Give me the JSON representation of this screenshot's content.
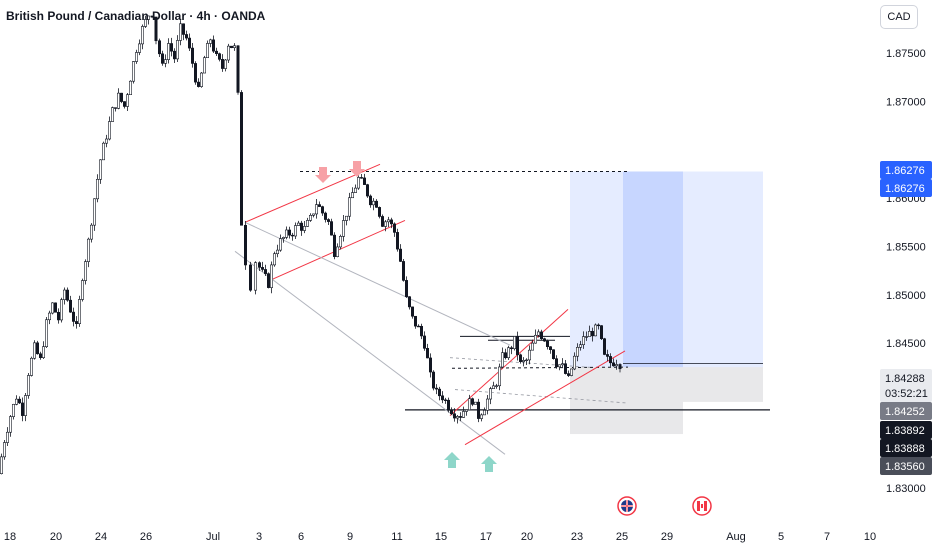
{
  "header": {
    "title": "British Pound / Canadian Dollar · 4h · OANDA",
    "currency": "CAD"
  },
  "colors": {
    "up": "#ffffff",
    "down": "#131722",
    "channel_red": "#f23645",
    "channel_gray": "#b2b5be",
    "target_blue": "#2962ff",
    "stop_gray": "#c8cbd2",
    "arrow_down": "#f7a1a6",
    "arrow_up": "#8ed6c9",
    "current_price_tag": "#e9ebef",
    "last_price_tag": "#131722"
  },
  "price_tags": {
    "target_a": "1.86276",
    "target_b": "1.86276",
    "current": "1.84288",
    "countdown": "03:52:21",
    "entry": "1.84252",
    "level_a": "1.83892",
    "level_b": "1.83888",
    "stop": "1.83560"
  },
  "chart_data": {
    "type": "candlestick",
    "title": "British Pound / Canadian Dollar · 4h · OANDA",
    "y_axis": {
      "unit": "CAD",
      "range": [
        1.8265,
        1.8805
      ],
      "ticks": [
        "1.87500",
        "1.87000",
        "1.86000",
        "1.85500",
        "1.85000",
        "1.84500",
        "1.83000"
      ]
    },
    "x_axis": {
      "ticks": [
        "18",
        "20",
        "24",
        "26",
        "Jul",
        "3",
        "6",
        "9",
        "11",
        "15",
        "17",
        "20",
        "23",
        "25",
        "29",
        "Aug",
        "5",
        "7",
        "10"
      ]
    },
    "path_points": [
      [
        0,
        1.8315
      ],
      [
        6,
        1.835
      ],
      [
        12,
        1.8375
      ],
      [
        18,
        1.8395
      ],
      [
        24,
        1.838
      ],
      [
        30,
        1.842
      ],
      [
        36,
        1.8445
      ],
      [
        42,
        1.8432
      ],
      [
        48,
        1.847
      ],
      [
        54,
        1.849
      ],
      [
        60,
        1.8475
      ],
      [
        66,
        1.8505
      ],
      [
        72,
        1.8485
      ],
      [
        78,
        1.8465
      ],
      [
        84,
        1.852
      ],
      [
        90,
        1.8555
      ],
      [
        96,
        1.86
      ],
      [
        102,
        1.864
      ],
      [
        108,
        1.8665
      ],
      [
        114,
        1.869
      ],
      [
        120,
        1.8705
      ],
      [
        126,
        1.8695
      ],
      [
        132,
        1.8725
      ],
      [
        138,
        1.8755
      ],
      [
        144,
        1.8775
      ],
      [
        150,
        1.879
      ],
      [
        154,
        1.8792
      ],
      [
        158,
        1.8765
      ],
      [
        164,
        1.8735
      ],
      [
        170,
        1.876
      ],
      [
        176,
        1.8745
      ],
      [
        182,
        1.8775
      ],
      [
        188,
        1.8765
      ],
      [
        194,
        1.874
      ],
      [
        200,
        1.871
      ],
      [
        206,
        1.8745
      ],
      [
        212,
        1.8765
      ],
      [
        218,
        1.8745
      ],
      [
        224,
        1.8735
      ],
      [
        230,
        1.876
      ],
      [
        236,
        1.8755
      ],
      [
        240,
        1.8705
      ],
      [
        243,
        1.8575
      ],
      [
        248,
        1.8535
      ],
      [
        253,
        1.851
      ],
      [
        258,
        1.8535
      ],
      [
        264,
        1.8522
      ],
      [
        270,
        1.8512
      ],
      [
        276,
        1.8545
      ],
      [
        282,
        1.8555
      ],
      [
        288,
        1.8562
      ],
      [
        294,
        1.8565
      ],
      [
        300,
        1.8573
      ],
      [
        306,
        1.8568
      ],
      [
        312,
        1.8578
      ],
      [
        318,
        1.8595
      ],
      [
        324,
        1.8585
      ],
      [
        330,
        1.8575
      ],
      [
        336,
        1.8545
      ],
      [
        342,
        1.8565
      ],
      [
        348,
        1.8585
      ],
      [
        354,
        1.8605
      ],
      [
        360,
        1.862
      ],
      [
        366,
        1.8612
      ],
      [
        372,
        1.8598
      ],
      [
        378,
        1.8595
      ],
      [
        384,
        1.8575
      ],
      [
        390,
        1.8578
      ],
      [
        396,
        1.8565
      ],
      [
        402,
        1.8535
      ],
      [
        408,
        1.8495
      ],
      [
        414,
        1.8475
      ],
      [
        420,
        1.8465
      ],
      [
        426,
        1.845
      ],
      [
        432,
        1.8415
      ],
      [
        438,
        1.8398
      ],
      [
        444,
        1.8395
      ],
      [
        450,
        1.8385
      ],
      [
        456,
        1.8378
      ],
      [
        462,
        1.8376
      ],
      [
        468,
        1.8385
      ],
      [
        474,
        1.8392
      ],
      [
        480,
        1.8375
      ],
      [
        486,
        1.8385
      ],
      [
        492,
        1.8398
      ],
      [
        498,
        1.841
      ],
      [
        504,
        1.8435
      ],
      [
        510,
        1.8442
      ],
      [
        516,
        1.8452
      ],
      [
        522,
        1.8428
      ],
      [
        528,
        1.8432
      ],
      [
        534,
        1.8448
      ],
      [
        540,
        1.8462
      ],
      [
        546,
        1.8455
      ],
      [
        552,
        1.8445
      ],
      [
        558,
        1.843
      ],
      [
        564,
        1.8425
      ],
      [
        570,
        1.8412
      ],
      [
        576,
        1.8435
      ],
      [
        582,
        1.845
      ],
      [
        588,
        1.8458
      ],
      [
        594,
        1.8462
      ],
      [
        600,
        1.8465
      ],
      [
        606,
        1.8435
      ],
      [
        612,
        1.843
      ],
      [
        618,
        1.8432
      ],
      [
        622,
        1.8429
      ]
    ],
    "annotations": {
      "resistance_level": 1.86276,
      "entry": 1.84252,
      "support_level": 1.83892,
      "stop": 1.8356,
      "target": 1.86276
    }
  }
}
